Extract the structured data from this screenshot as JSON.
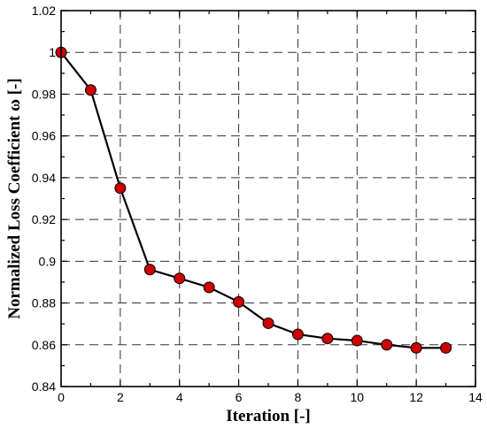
{
  "chart_data": {
    "type": "line",
    "xlabel": "Iteration [-]",
    "ylabel": "Normalized Loss Coefficient ω [-]",
    "xlim": [
      0,
      14
    ],
    "ylim": [
      0.84,
      1.02
    ],
    "xticks": [
      0,
      2,
      4,
      6,
      8,
      10,
      12,
      14
    ],
    "yticks": [
      0.84,
      0.86,
      0.88,
      0.9,
      0.92,
      0.94,
      0.96,
      0.98,
      1,
      1.02
    ],
    "xtick_labels": [
      "0",
      "2",
      "4",
      "6",
      "8",
      "10",
      "12",
      "14"
    ],
    "ytick_labels": [
      "0.84",
      "0.86",
      "0.88",
      "0.9",
      "0.92",
      "0.94",
      "0.96",
      "0.98",
      "1",
      "1.02"
    ],
    "grid": true,
    "series": [
      {
        "x": [
          0,
          1,
          2,
          3,
          4,
          5,
          6,
          7,
          8,
          9,
          10,
          11,
          12,
          13
        ],
        "y": [
          1.0,
          0.982,
          0.935,
          0.896,
          0.8918,
          0.8875,
          0.8805,
          0.8703,
          0.865,
          0.863,
          0.862,
          0.86,
          0.8585,
          0.8585
        ],
        "line_color": "#000000",
        "marker_color": "#cc0000"
      }
    ]
  }
}
